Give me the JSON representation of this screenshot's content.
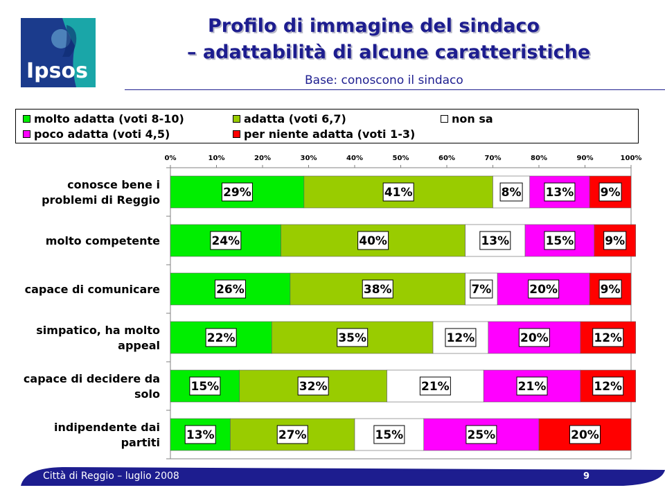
{
  "header": {
    "logo_text": "Ipsos",
    "title_line1": "Profilo di immagine del sindaco",
    "title_line2": "– adattabilità di alcune caratteristiche",
    "subtitle": "Base: conoscono il sindaco"
  },
  "legend": [
    {
      "label": "molto adatta (voti 8-10)",
      "color": "#00ee00"
    },
    {
      "label": "adatta (voti 6,7)",
      "color": "#99cc00"
    },
    {
      "label": "non sa",
      "color": "#ffffff"
    },
    {
      "label": "poco adatta (voti 4,5)",
      "color": "#ff00ff"
    },
    {
      "label": "per niente adatta (voti 1-3)",
      "color": "#ff0000"
    }
  ],
  "chart_data": {
    "type": "bar",
    "orientation": "horizontal",
    "stacked": true,
    "title": "Profilo di immagine del sindaco – adattabilità di alcune caratteristiche",
    "subtitle": "Base: conoscono il sindaco",
    "xlim": [
      0,
      100
    ],
    "x_ticks": [
      "0%",
      "10%",
      "20%",
      "30%",
      "40%",
      "50%",
      "60%",
      "70%",
      "80%",
      "90%",
      "100%"
    ],
    "legend_position": "top",
    "categories": [
      [
        "conosce bene i",
        "problemi di Reggio"
      ],
      [
        "molto competente"
      ],
      [
        "capace di comunicare"
      ],
      [
        "simpatico, ha molto",
        "appeal"
      ],
      [
        "capace di decidere da",
        "solo"
      ],
      [
        "indipendente dai",
        "partiti"
      ]
    ],
    "series": [
      {
        "name": "molto adatta (voti 8-10)",
        "color": "#00ee00",
        "values": [
          29,
          24,
          26,
          22,
          15,
          13
        ]
      },
      {
        "name": "adatta (voti 6,7)",
        "color": "#99cc00",
        "values": [
          41,
          40,
          38,
          35,
          32,
          27
        ]
      },
      {
        "name": "non sa",
        "color": "#ffffff",
        "values": [
          8,
          13,
          7,
          12,
          21,
          15
        ]
      },
      {
        "name": "poco adatta (voti 4,5)",
        "color": "#ff00ff",
        "values": [
          13,
          15,
          20,
          20,
          21,
          25
        ]
      },
      {
        "name": "per niente adatta (voti 1-3)",
        "color": "#ff0000",
        "values": [
          9,
          9,
          9,
          12,
          12,
          20
        ]
      }
    ]
  },
  "footer": {
    "text": "Città di Reggio – luglio 2008",
    "page": "9"
  }
}
